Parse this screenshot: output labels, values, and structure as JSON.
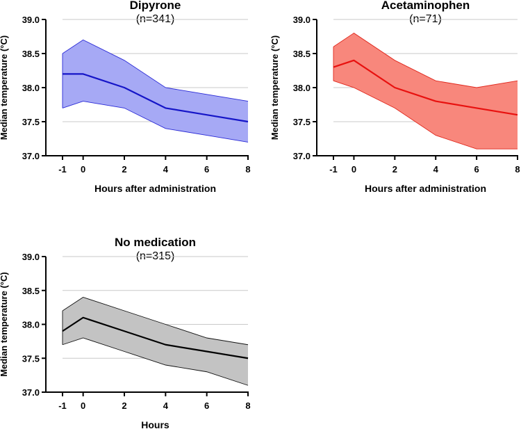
{
  "chart_data": [
    {
      "type": "line",
      "title": "Dipyrone",
      "subtitle": "(n=341)",
      "xlabel": "Hours after administration",
      "ylabel": "Median temperature (°C)",
      "x": [
        -1,
        0,
        2,
        4,
        6,
        8
      ],
      "xticks": [
        "-1",
        "0",
        "2",
        "4",
        "6",
        "8"
      ],
      "yticks": [
        "37.0",
        "37.5",
        "38.0",
        "38.5",
        "39.0"
      ],
      "ylim": [
        37.0,
        39.0
      ],
      "grid": true,
      "series": [
        {
          "name": "Median",
          "values": [
            38.2,
            38.2,
            38.0,
            37.7,
            37.6,
            37.5
          ]
        },
        {
          "name": "Upper bound",
          "values": [
            38.5,
            38.7,
            38.4,
            38.0,
            37.9,
            37.8
          ]
        },
        {
          "name": "Lower bound",
          "values": [
            37.7,
            37.8,
            37.7,
            37.4,
            37.3,
            37.2
          ]
        }
      ],
      "colors": {
        "line": "#1515c8",
        "fill": "#a6a9f5",
        "band": "#2a2ad6"
      }
    },
    {
      "type": "line",
      "title": "Acetaminophen",
      "subtitle": "(n=71)",
      "xlabel": "Hours after administration",
      "ylabel": "Median temperature (°C)",
      "x": [
        -1,
        0,
        2,
        4,
        6,
        8
      ],
      "xticks": [
        "-1",
        "0",
        "2",
        "4",
        "6",
        "8"
      ],
      "yticks": [
        "37.0",
        "37.5",
        "38.0",
        "38.5",
        "39.0"
      ],
      "ylim": [
        37.0,
        39.0
      ],
      "grid": true,
      "series": [
        {
          "name": "Median",
          "values": [
            38.3,
            38.4,
            38.0,
            37.8,
            37.7,
            37.6
          ]
        },
        {
          "name": "Upper bound",
          "values": [
            38.6,
            38.8,
            38.4,
            38.1,
            38.0,
            38.1
          ]
        },
        {
          "name": "Lower bound",
          "values": [
            38.1,
            38.0,
            37.7,
            37.3,
            37.1,
            37.1
          ]
        }
      ],
      "colors": {
        "line": "#e8110f",
        "fill": "#f8877c",
        "band": "#e0271c"
      }
    },
    {
      "type": "line",
      "title": "No medication",
      "subtitle": "(n=315)",
      "xlabel": "Hours",
      "ylabel": "Median temperature (°C)",
      "x": [
        -1,
        0,
        2,
        4,
        6,
        8
      ],
      "xticks": [
        "-1",
        "0",
        "2",
        "4",
        "6",
        "8"
      ],
      "yticks": [
        "37.0",
        "37.5",
        "38.0",
        "38.5",
        "39.0"
      ],
      "ylim": [
        37.0,
        39.0
      ],
      "grid": true,
      "series": [
        {
          "name": "Median",
          "values": [
            37.9,
            38.1,
            37.9,
            37.7,
            37.6,
            37.5
          ]
        },
        {
          "name": "Upper bound",
          "values": [
            38.2,
            38.4,
            38.2,
            38.0,
            37.8,
            37.7
          ]
        },
        {
          "name": "Lower bound",
          "values": [
            37.7,
            37.8,
            37.6,
            37.4,
            37.3,
            37.1
          ]
        }
      ],
      "colors": {
        "line": "#000000",
        "fill": "#c3c3c3",
        "band": "#111111"
      }
    }
  ]
}
